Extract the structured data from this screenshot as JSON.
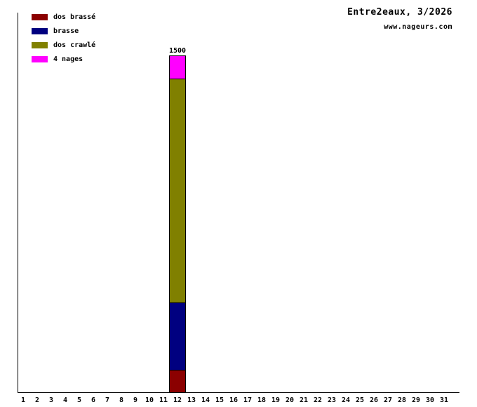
{
  "chart_data": {
    "type": "bar",
    "stacked": true,
    "title": "Entre2eaux, 3/2026",
    "subtitle": "www.nageurs.com",
    "x_categories": [
      "1",
      "2",
      "3",
      "4",
      "5",
      "6",
      "7",
      "8",
      "9",
      "10",
      "11",
      "12",
      "13",
      "14",
      "15",
      "16",
      "17",
      "18",
      "19",
      "20",
      "21",
      "22",
      "23",
      "24",
      "25",
      "26",
      "27",
      "28",
      "29",
      "30",
      "31"
    ],
    "ylim": [
      0,
      1500
    ],
    "grid": false,
    "legend_position": "top-left",
    "series": [
      {
        "name": "dos brassé",
        "color": "#8B0000",
        "points": [
          {
            "x": 12,
            "y": 100
          }
        ]
      },
      {
        "name": "brasse",
        "color": "#000080",
        "points": [
          {
            "x": 12,
            "y": 300
          }
        ]
      },
      {
        "name": "dos crawlé",
        "color": "#808000",
        "points": [
          {
            "x": 12,
            "y": 1000
          }
        ]
      },
      {
        "name": "4 nages",
        "color": "#FF00FF",
        "points": [
          {
            "x": 12,
            "y": 100
          }
        ]
      }
    ],
    "bar_total_labels": [
      {
        "x": 12,
        "label": "1500"
      }
    ]
  }
}
